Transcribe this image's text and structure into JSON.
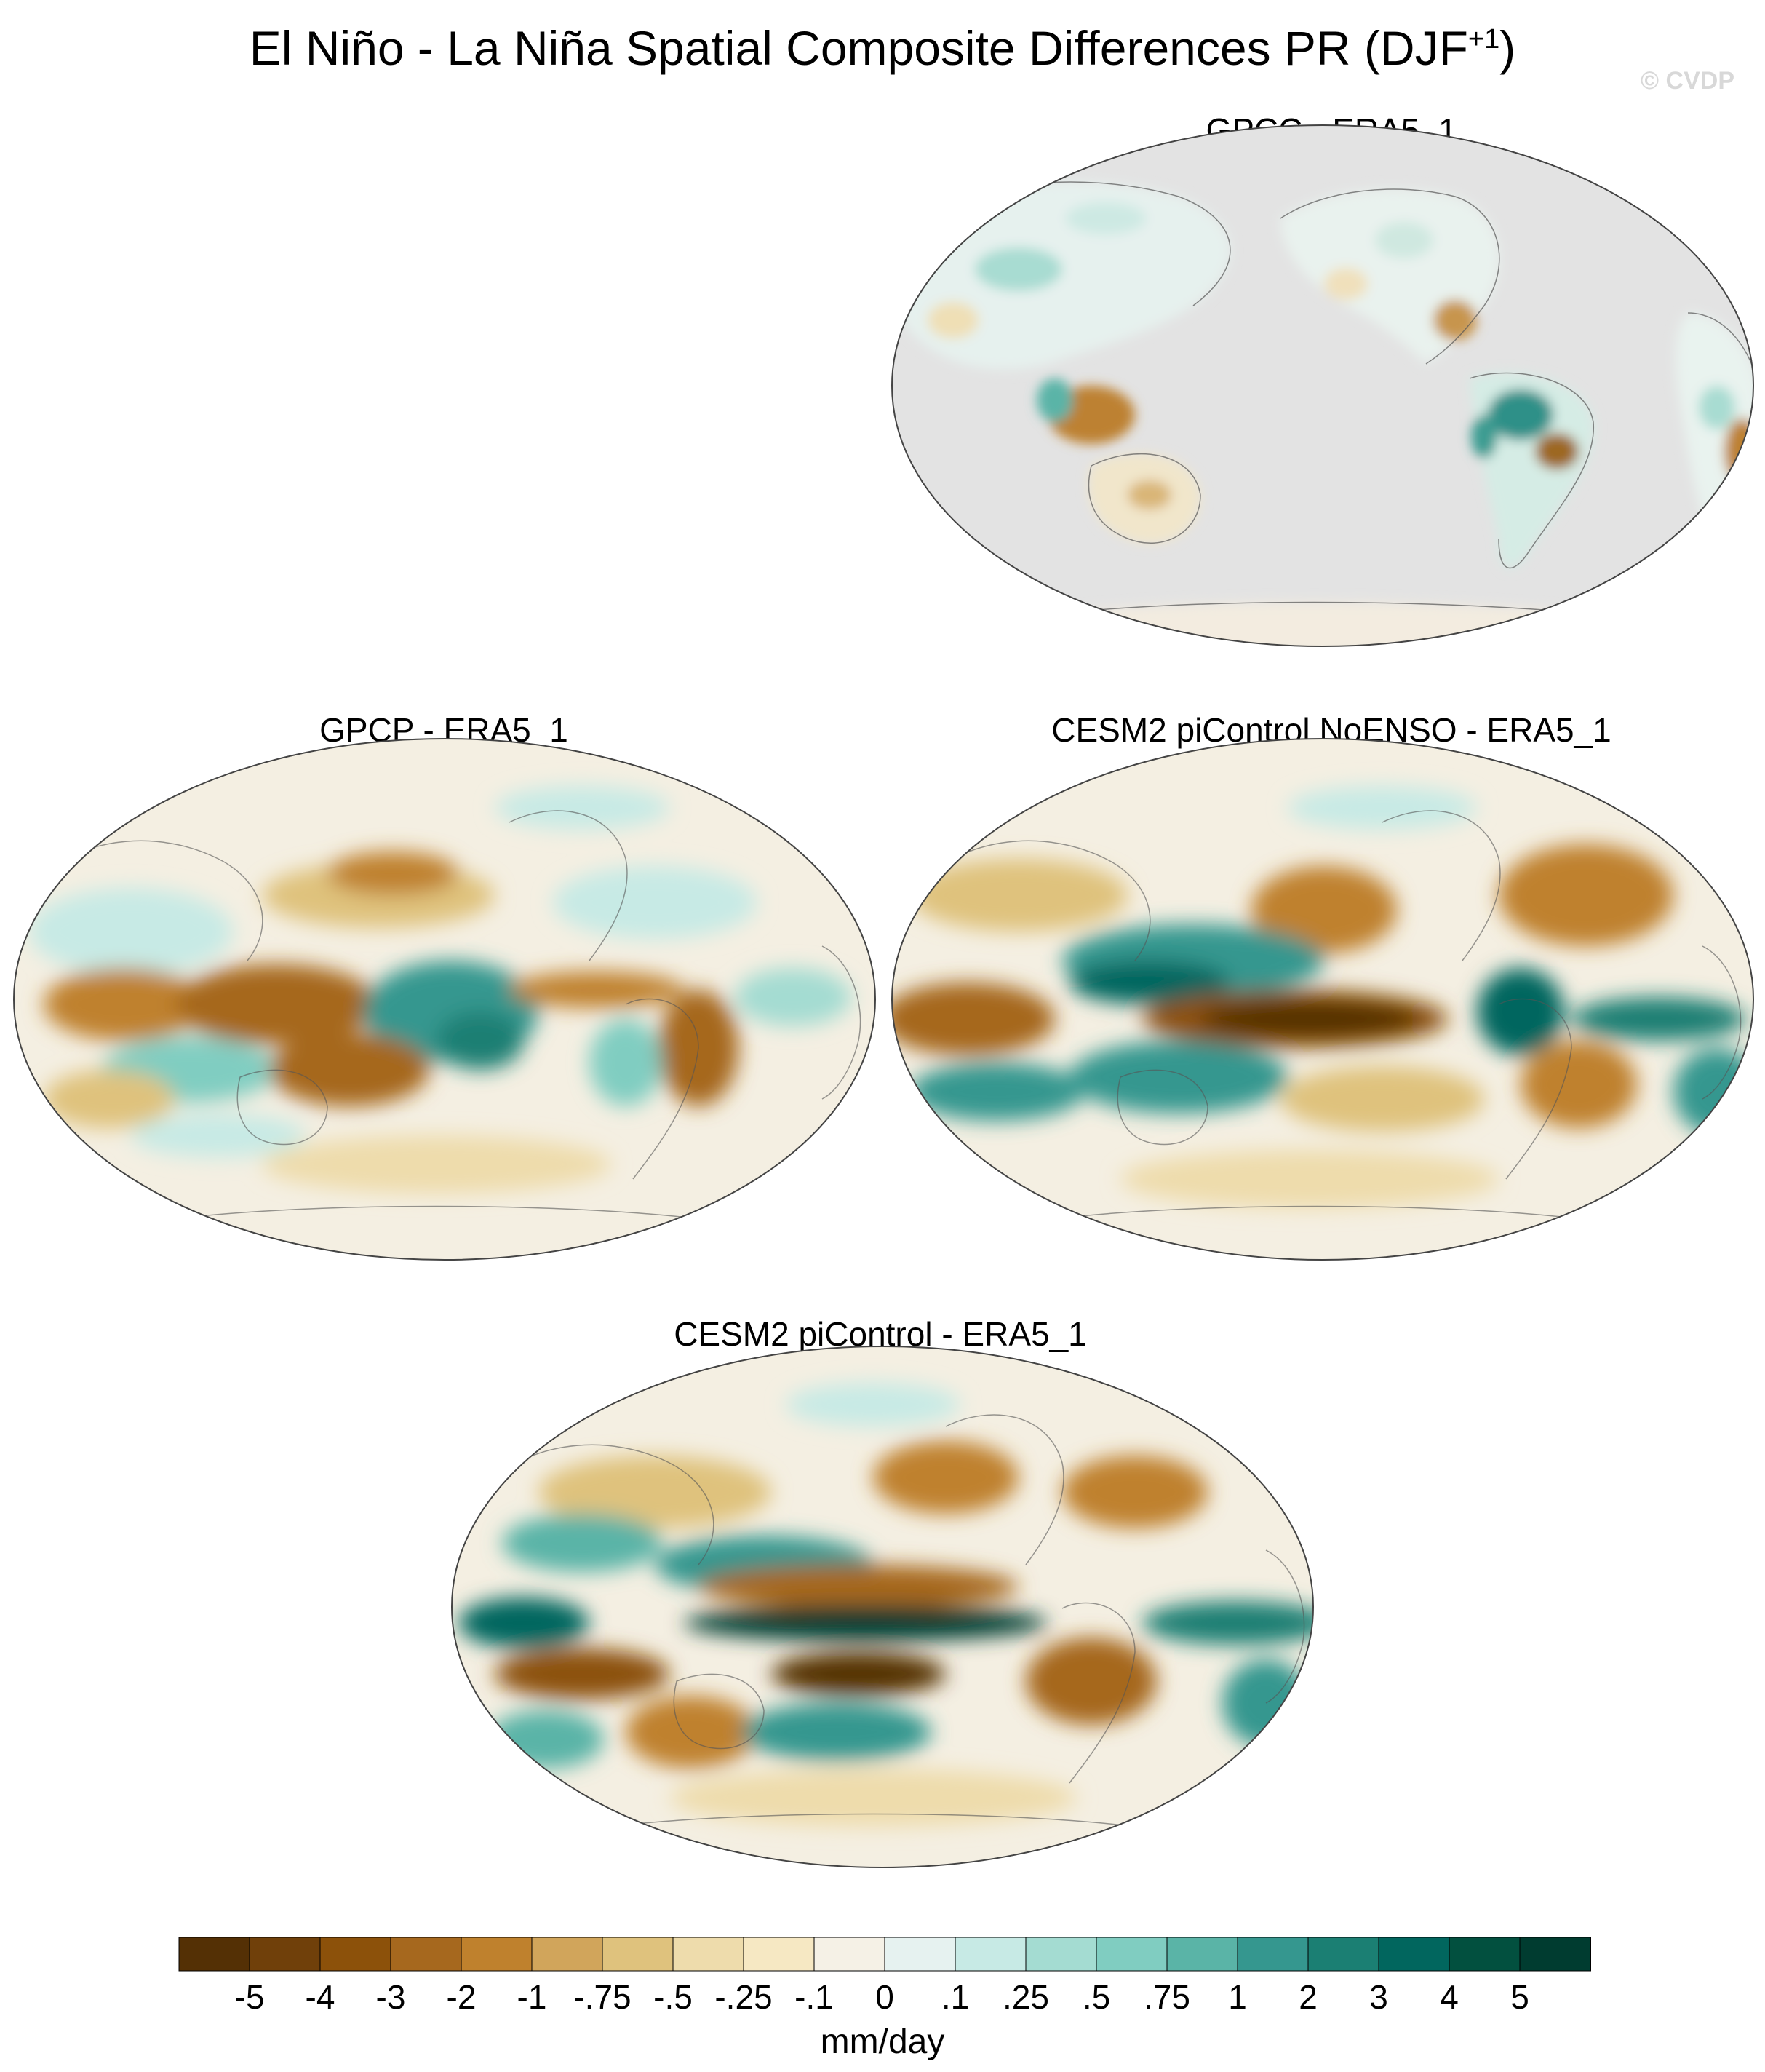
{
  "title": {
    "main": "El Niño - La Niña Spatial Composite Differences PR (DJF",
    "superscript": "+1",
    "close": ")"
  },
  "watermark": "© CVDP",
  "chart_data": [
    {
      "type": "heatmap",
      "title": "GPCC - ERA5_1",
      "projection": "global map"
    },
    {
      "type": "heatmap",
      "title": "GPCP - ERA5_1",
      "projection": "global map"
    },
    {
      "type": "heatmap",
      "title": "CESM2 piControl NoENSO - ERA5_1",
      "projection": "global map"
    },
    {
      "type": "heatmap",
      "title": "CESM2 piControl - ERA5_1",
      "projection": "global map"
    }
  ],
  "colorbar": {
    "units": "mm/day",
    "tick_labels": [
      "-5",
      "-4",
      "-3",
      "-2",
      "-1",
      "-.75",
      "-.5",
      "-.25",
      "-.1",
      "0",
      ".1",
      ".25",
      ".5",
      ".75",
      "1",
      "2",
      "3",
      "4",
      "5"
    ],
    "colors": [
      "#543005",
      "#70400a",
      "#8c510a",
      "#a6681e",
      "#bf812d",
      "#d1a55b",
      "#dfc27d",
      "#eedcac",
      "#f6e8c3",
      "#f5f1e6",
      "#e6f2f0",
      "#c7eae5",
      "#a4dcd2",
      "#80cdc1",
      "#5ab4a7",
      "#35978f",
      "#1b7f73",
      "#01665e",
      "#02503f",
      "#003c30"
    ]
  }
}
